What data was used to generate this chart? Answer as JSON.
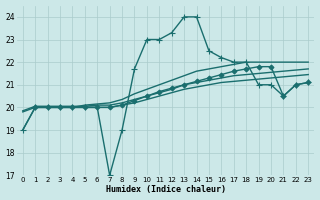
{
  "xlabel": "Humidex (Indice chaleur)",
  "bg_color": "#cce8e8",
  "grid_color": "#aacccc",
  "line_color": "#1a6e6e",
  "xlim": [
    -0.5,
    23.5
  ],
  "ylim": [
    17,
    24.5
  ],
  "yticks": [
    17,
    18,
    19,
    20,
    21,
    22,
    23,
    24
  ],
  "xticks": [
    0,
    1,
    2,
    3,
    4,
    5,
    6,
    7,
    8,
    9,
    10,
    11,
    12,
    13,
    14,
    15,
    16,
    17,
    18,
    19,
    20,
    21,
    22,
    23
  ],
  "series": [
    {
      "x": [
        0,
        1,
        2,
        3,
        4,
        5,
        6,
        7,
        8,
        9,
        10,
        11,
        12,
        13,
        14,
        15,
        16,
        17,
        18,
        19,
        20,
        21,
        22,
        23
      ],
      "y": [
        19,
        20,
        20,
        20,
        20,
        20,
        20,
        17,
        19,
        21.7,
        23,
        23,
        23.3,
        24,
        24,
        22.5,
        22.2,
        22,
        22,
        21,
        21,
        20.5,
        21,
        21.1
      ],
      "marker": "+",
      "markersize": 4,
      "linewidth": 1.0,
      "linestyle": "-"
    },
    {
      "x": [
        0,
        1,
        2,
        3,
        4,
        5,
        6,
        7,
        8,
        9,
        10,
        11,
        12,
        13,
        14,
        15,
        16,
        17,
        18,
        19,
        20,
        21,
        22,
        23
      ],
      "y": [
        19.8,
        20.0,
        20.0,
        20.0,
        20.0,
        20.0,
        20.0,
        20.0,
        20.1,
        20.2,
        20.35,
        20.5,
        20.65,
        20.8,
        20.9,
        21.0,
        21.1,
        21.15,
        21.2,
        21.25,
        21.3,
        21.35,
        21.4,
        21.45
      ],
      "marker": null,
      "markersize": 0,
      "linewidth": 1.0,
      "linestyle": "-"
    },
    {
      "x": [
        0,
        1,
        2,
        3,
        4,
        5,
        6,
        7,
        8,
        9,
        10,
        11,
        12,
        13,
        14,
        15,
        16,
        17,
        18,
        19,
        20,
        21,
        22,
        23
      ],
      "y": [
        19.85,
        20.05,
        20.05,
        20.05,
        20.05,
        20.05,
        20.1,
        20.1,
        20.2,
        20.35,
        20.5,
        20.65,
        20.8,
        21.0,
        21.1,
        21.2,
        21.3,
        21.4,
        21.45,
        21.5,
        21.55,
        21.6,
        21.65,
        21.7
      ],
      "marker": null,
      "markersize": 0,
      "linewidth": 1.0,
      "linestyle": "-"
    },
    {
      "x": [
        0,
        1,
        2,
        3,
        4,
        5,
        6,
        7,
        8,
        9,
        10,
        11,
        12,
        13,
        14,
        15,
        16,
        17,
        18,
        19,
        20,
        21,
        22,
        23
      ],
      "y": [
        19.0,
        20.0,
        20.0,
        20.0,
        20.0,
        20.1,
        20.15,
        20.2,
        20.35,
        20.6,
        20.8,
        21.0,
        21.2,
        21.4,
        21.6,
        21.7,
        21.8,
        21.9,
        22.0,
        22.0,
        22.0,
        22.0,
        22.0,
        22.0
      ],
      "marker": null,
      "markersize": 0,
      "linewidth": 1.0,
      "linestyle": "-"
    },
    {
      "x": [
        1,
        2,
        3,
        4,
        5,
        6,
        7,
        8,
        9,
        10,
        11,
        12,
        13,
        14,
        15,
        16,
        17,
        18,
        19,
        20,
        21,
        22,
        23
      ],
      "y": [
        20,
        20,
        20,
        20,
        20,
        20,
        20,
        20.1,
        20.3,
        20.5,
        20.7,
        20.85,
        21.0,
        21.15,
        21.3,
        21.45,
        21.6,
        21.7,
        21.8,
        21.8,
        20.5,
        21.0,
        21.1
      ],
      "marker": "D",
      "markersize": 2.5,
      "linewidth": 1.0,
      "linestyle": "-"
    }
  ]
}
